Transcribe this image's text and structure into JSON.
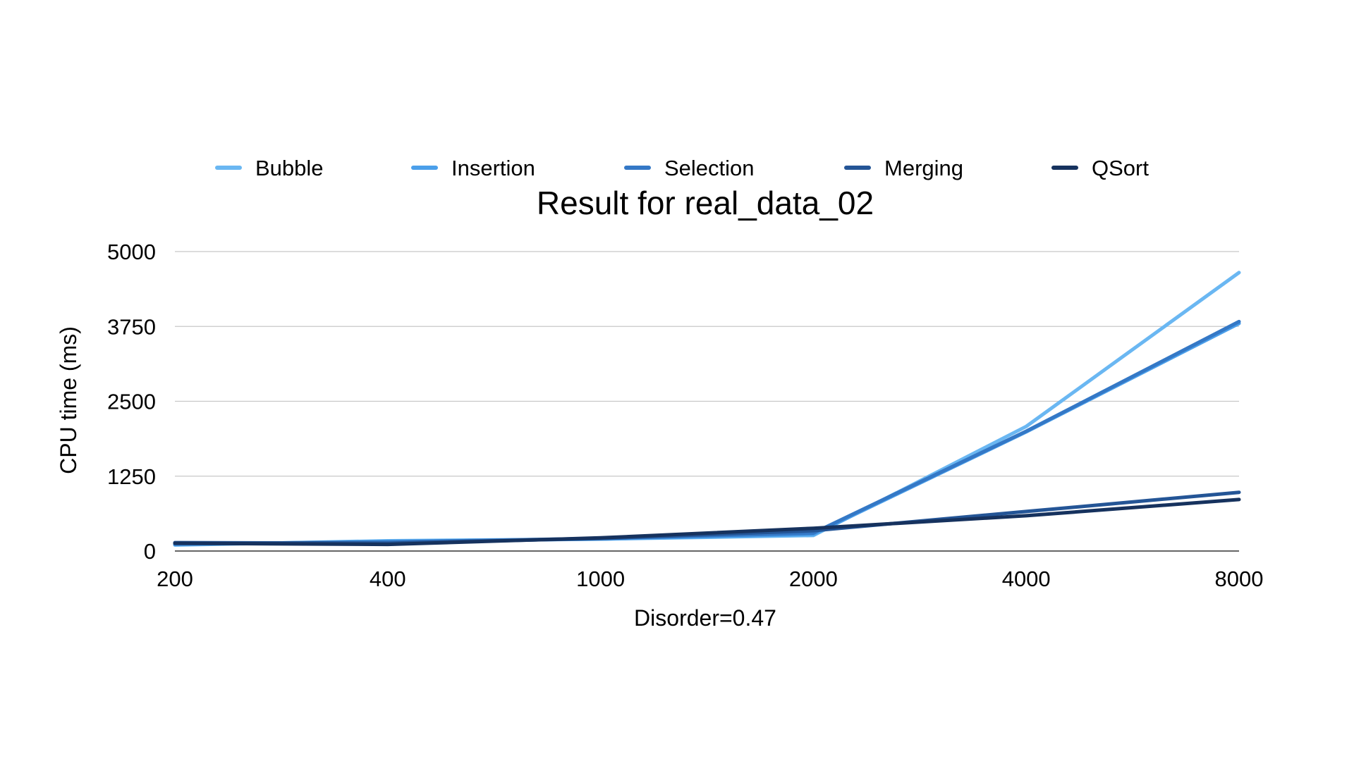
{
  "chart_data": {
    "type": "line",
    "title": "Result for real_data_02",
    "xlabel": "Disorder=0.47",
    "ylabel": "CPU time (ms)",
    "categories": [
      "200",
      "400",
      "1000",
      "2000",
      "4000",
      "8000"
    ],
    "ylim": [
      0,
      5000
    ],
    "yticks": [
      "0",
      "1250",
      "2500",
      "3750",
      "5000"
    ],
    "grid": true,
    "legend_position": "top",
    "series": [
      {
        "name": "Bubble",
        "color": "#6ab7f2",
        "values": [
          100,
          170,
          200,
          260,
          2080,
          4650
        ]
      },
      {
        "name": "Insertion",
        "color": "#4b9fea",
        "values": [
          110,
          160,
          200,
          280,
          1990,
          3800
        ]
      },
      {
        "name": "Selection",
        "color": "#3478c6",
        "values": [
          120,
          150,
          210,
          300,
          2000,
          3830
        ]
      },
      {
        "name": "Merging",
        "color": "#245596",
        "values": [
          140,
          130,
          210,
          340,
          660,
          980
        ]
      },
      {
        "name": "QSort",
        "color": "#16325e",
        "values": [
          130,
          110,
          220,
          380,
          590,
          860
        ]
      }
    ]
  }
}
